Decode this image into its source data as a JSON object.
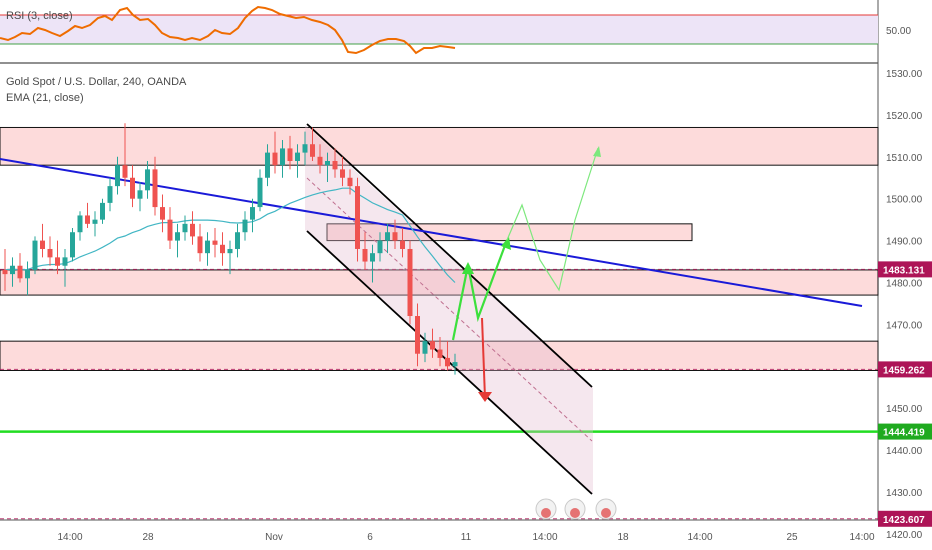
{
  "chart_data": {
    "type": "candlestick",
    "rsi_panel": {
      "label": "RSI (3, close)",
      "tick_labels": [
        "50.00"
      ]
    },
    "main_panel": {
      "title": "Gold Spot / U.S. Dollar, 240, OANDA",
      "indicator": "EMA (21, close)",
      "ylim": [
        1414,
        1534
      ],
      "y_ticks": [
        1420,
        1430,
        1440,
        1450,
        1460,
        1470,
        1480,
        1490,
        1500,
        1510,
        1520,
        1530
      ],
      "y_tick_labels": [
        "1420.00",
        "1430.00",
        "1440.00",
        "1450.00",
        "1460.00",
        "1470.00",
        "1480.00",
        "1490.00",
        "1500.00",
        "1510.00",
        "1520.00",
        "1530.00"
      ],
      "x_tick_labels": [
        "14:00",
        "28",
        "Nov",
        "6",
        "11",
        "14:00",
        "18",
        "14:00",
        "25",
        "14:00"
      ],
      "price_tags": [
        {
          "value": 1483.131,
          "label": "1483.131",
          "color": "#ad1457"
        },
        {
          "value": 1459.262,
          "label": "1459.262",
          "color": "#ad1457"
        },
        {
          "value": 1444.419,
          "label": "1444.419",
          "color": "#1faa1f"
        },
        {
          "value": 1423.607,
          "label": "1423.607",
          "color": "#ad1457"
        }
      ],
      "zones": [
        {
          "from": 1508,
          "to": 1517
        },
        {
          "from": 1477,
          "to": 1483
        },
        {
          "from": 1459,
          "to": 1466
        }
      ],
      "small_box": {
        "from": 1490,
        "to": 1494
      },
      "support_line": 1444.419,
      "dashed_level": 1423.607,
      "ohlc": [
        [
          1483,
          1488,
          1478,
          1482
        ],
        [
          1482,
          1486,
          1479,
          1484
        ],
        [
          1484,
          1487,
          1480,
          1481
        ],
        [
          1481,
          1485,
          1477,
          1483
        ],
        [
          1483,
          1491,
          1482,
          1490
        ],
        [
          1490,
          1494,
          1486,
          1488
        ],
        [
          1488,
          1491,
          1484,
          1486
        ],
        [
          1486,
          1490,
          1482,
          1484
        ],
        [
          1484,
          1488,
          1479,
          1486
        ],
        [
          1486,
          1493,
          1485,
          1492
        ],
        [
          1492,
          1497,
          1490,
          1496
        ],
        [
          1496,
          1499,
          1493,
          1494
        ],
        [
          1494,
          1497,
          1491,
          1495
        ],
        [
          1495,
          1500,
          1494,
          1499
        ],
        [
          1499,
          1505,
          1497,
          1503
        ],
        [
          1503,
          1510,
          1501,
          1508
        ],
        [
          1508,
          1518,
          1503,
          1505
        ],
        [
          1505,
          1508,
          1498,
          1500
        ],
        [
          1500,
          1504,
          1497,
          1502
        ],
        [
          1502,
          1509,
          1500,
          1507
        ],
        [
          1507,
          1510,
          1496,
          1498
        ],
        [
          1498,
          1501,
          1492,
          1495
        ],
        [
          1495,
          1498,
          1488,
          1490
        ],
        [
          1490,
          1494,
          1486,
          1492
        ],
        [
          1492,
          1496,
          1490,
          1494
        ],
        [
          1494,
          1497,
          1489,
          1491
        ],
        [
          1491,
          1494,
          1485,
          1487
        ],
        [
          1487,
          1492,
          1484,
          1490
        ],
        [
          1490,
          1493,
          1486,
          1489
        ],
        [
          1489,
          1492,
          1484,
          1487
        ],
        [
          1487,
          1490,
          1482,
          1488
        ],
        [
          1488,
          1494,
          1486,
          1492
        ],
        [
          1492,
          1497,
          1490,
          1495
        ],
        [
          1495,
          1500,
          1492,
          1498
        ],
        [
          1498,
          1507,
          1497,
          1505
        ],
        [
          1505,
          1513,
          1503,
          1511
        ],
        [
          1511,
          1516,
          1506,
          1508
        ],
        [
          1508,
          1514,
          1505,
          1512
        ],
        [
          1512,
          1515,
          1507,
          1509
        ],
        [
          1509,
          1513,
          1505,
          1511
        ],
        [
          1511,
          1516,
          1508,
          1513
        ],
        [
          1513,
          1517,
          1509,
          1510
        ],
        [
          1510,
          1513,
          1506,
          1508
        ],
        [
          1508,
          1511,
          1504,
          1509
        ],
        [
          1509,
          1512,
          1505,
          1507
        ],
        [
          1507,
          1510,
          1503,
          1505
        ],
        [
          1505,
          1507,
          1501,
          1503
        ],
        [
          1503,
          1505,
          1485,
          1488
        ],
        [
          1488,
          1492,
          1483,
          1485
        ],
        [
          1485,
          1489,
          1480,
          1487
        ],
        [
          1487,
          1492,
          1485,
          1490
        ],
        [
          1490,
          1494,
          1487,
          1492
        ],
        [
          1492,
          1495,
          1488,
          1490
        ],
        [
          1490,
          1493,
          1486,
          1488
        ],
        [
          1488,
          1490,
          1470,
          1472
        ],
        [
          1472,
          1475,
          1460,
          1463
        ],
        [
          1463,
          1468,
          1461,
          1466
        ],
        [
          1466,
          1469,
          1462,
          1464
        ],
        [
          1464,
          1467,
          1460,
          1462
        ],
        [
          1462,
          1466,
          1459,
          1460
        ],
        [
          1460,
          1463,
          1458,
          1461
        ]
      ],
      "ema": [
        1483,
        1483.2,
        1483,
        1483.1,
        1483.7,
        1484.1,
        1484.3,
        1484.3,
        1484.5,
        1485.2,
        1486.1,
        1486.8,
        1487.5,
        1488.4,
        1489.4,
        1490.6,
        1491.1,
        1491.9,
        1492.5,
        1493.4,
        1493.9,
        1494.3,
        1494.3,
        1494.4,
        1494.7,
        1494.9,
        1494.9,
        1494.9,
        1494.8,
        1494.6,
        1494.3,
        1494.2,
        1494.3,
        1494.5,
        1495.2,
        1496.3,
        1497,
        1498,
        1498.9,
        1499.6,
        1500.3,
        1500.9,
        1501.4,
        1501.8,
        1502.1,
        1502.5,
        1502.5,
        1501.2,
        1500.1,
        1499,
        1498.2,
        1497.4,
        1496.8,
        1496.1,
        1493.5,
        1490.9,
        1488.5,
        1486.3,
        1484,
        1481.8,
        1480
      ]
    }
  }
}
